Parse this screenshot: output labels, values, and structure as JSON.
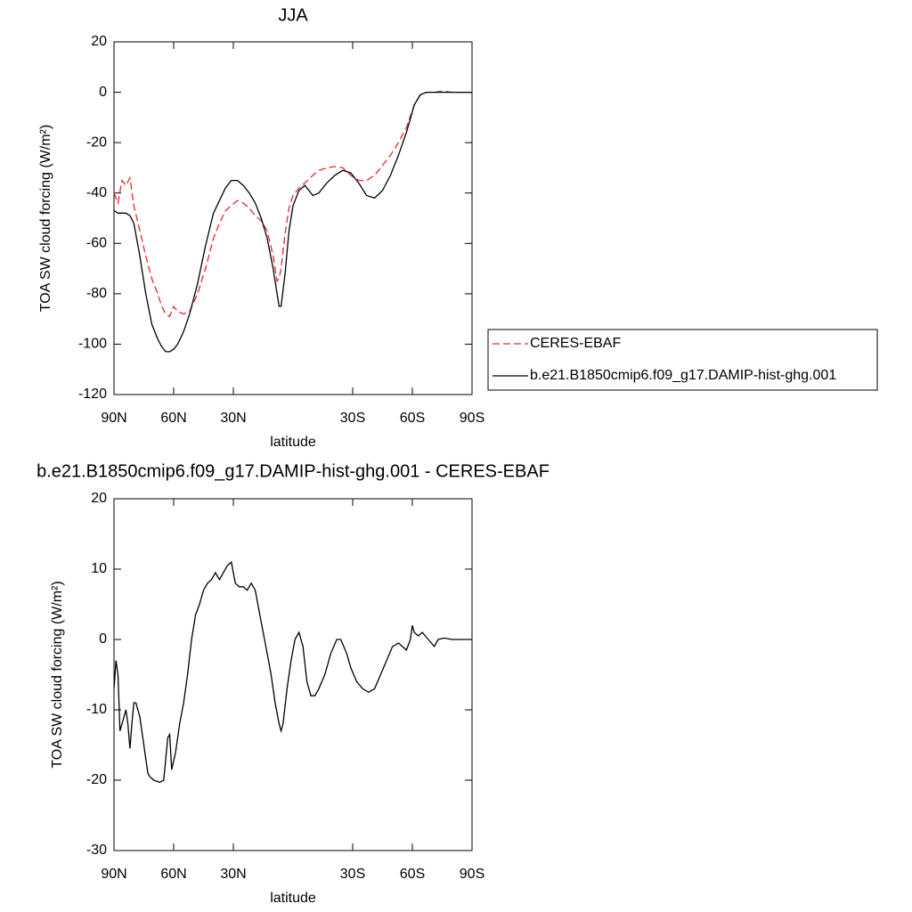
{
  "chart_data": [
    {
      "type": "line",
      "title": "JJA",
      "xlabel": "latitude",
      "ylabel": "TOA SW cloud forcing (W/m²)",
      "x": [
        90,
        88,
        86,
        84,
        82,
        80,
        77,
        74,
        71,
        68,
        66,
        64,
        62,
        60,
        58,
        55,
        52,
        48,
        44,
        40,
        37,
        34,
        31,
        28,
        25,
        22,
        19,
        16,
        13,
        10,
        8,
        7,
        6,
        4,
        2,
        0,
        -3,
        -6,
        -10,
        -13,
        -17,
        -21,
        -25,
        -29,
        -33,
        -37,
        -41,
        -45,
        -49,
        -53,
        -57,
        -61,
        -64,
        -67,
        -71,
        -75,
        -80,
        -85,
        -90
      ],
      "series": [
        {
          "name": "CERES-EBAF",
          "color": "#e8262a",
          "dashed": true,
          "values": [
            -40,
            -44,
            -35,
            -37,
            -34,
            -45,
            -55,
            -65,
            -74,
            -80,
            -85,
            -88,
            -89,
            -85,
            -87,
            -88,
            -87,
            -80,
            -70,
            -58,
            -52,
            -47,
            -45,
            -43,
            -44,
            -46,
            -49,
            -51,
            -55,
            -65,
            -75,
            -74,
            -70,
            -56,
            -46,
            -41,
            -38,
            -36,
            -33,
            -31,
            -30,
            -29.5,
            -30,
            -33,
            -35,
            -35,
            -33,
            -29,
            -25,
            -20,
            -14,
            -5,
            -1,
            0,
            0,
            0.5,
            0,
            0,
            0
          ]
        },
        {
          "name": "b.e21.B1850cmip6.f09_g17.DAMIP-hist-ghg.001",
          "color": "#000000",
          "dashed": false,
          "values": [
            -47,
            -48,
            -48,
            -48,
            -49,
            -52,
            -65,
            -80,
            -92,
            -98,
            -101,
            -103,
            -103,
            -102,
            -100,
            -95,
            -88,
            -76,
            -61,
            -48,
            -43,
            -38,
            -35,
            -35,
            -37,
            -40,
            -44,
            -50,
            -58,
            -70,
            -80,
            -85,
            -85,
            -72,
            -55,
            -45,
            -39,
            -37,
            -41,
            -40,
            -36,
            -33,
            -31,
            -32,
            -36,
            -41,
            -42,
            -39,
            -33,
            -25,
            -16,
            -5,
            -1,
            0,
            0,
            0,
            0,
            0,
            0
          ]
        }
      ],
      "xlim": [
        90,
        -90
      ],
      "ylim": [
        -120,
        20
      ],
      "xticks": [
        {
          "value": 90,
          "label": "90N"
        },
        {
          "value": 60,
          "label": "60N"
        },
        {
          "value": 30,
          "label": "30N"
        },
        {
          "value": -30,
          "label": "30S"
        },
        {
          "value": -60,
          "label": "60S"
        },
        {
          "value": -90,
          "label": "90S"
        }
      ],
      "yticks": [
        -120,
        -100,
        -80,
        -60,
        -40,
        -20,
        0,
        20
      ],
      "legend": "right"
    },
    {
      "type": "line",
      "title": "b.e21.B1850cmip6.f09_g17.DAMIP-hist-ghg.001 - CERES-EBAF",
      "xlabel": "latitude",
      "ylabel": "TOA SW cloud forcing (W/m²)",
      "x": [
        90,
        89,
        88,
        87,
        85,
        84,
        83,
        82,
        81,
        80,
        79,
        77,
        75,
        73,
        72,
        70,
        67,
        65,
        64,
        63,
        62,
        61,
        59,
        57,
        55,
        53,
        51,
        49,
        47,
        45,
        43,
        41,
        39,
        37,
        35,
        33,
        31,
        29,
        27,
        25,
        23,
        21,
        19,
        17,
        15,
        13,
        11,
        9,
        7,
        6,
        5,
        3,
        1,
        -1,
        -3,
        -5,
        -7,
        -9,
        -11,
        -13,
        -16,
        -19,
        -22,
        -24,
        -27,
        -29,
        -32,
        -35,
        -38,
        -41,
        -44,
        -47,
        -50,
        -53,
        -55,
        -57,
        -59,
        -60,
        -61,
        -63,
        -65,
        -68,
        -71,
        -73,
        -76,
        -80,
        -85,
        -90
      ],
      "series": [
        {
          "color": "#000000",
          "dashed": false,
          "values": [
            -7,
            -3,
            -5,
            -13,
            -11,
            -10,
            -12,
            -15.5,
            -12,
            -9,
            -9,
            -11,
            -15,
            -19,
            -19.5,
            -20,
            -20.3,
            -20,
            -17,
            -14,
            -13.5,
            -18.5,
            -16,
            -12,
            -9,
            -5,
            0,
            3.5,
            5,
            7,
            8,
            8.5,
            9.5,
            8.5,
            9.5,
            10.5,
            11,
            8,
            7.5,
            7.5,
            7,
            8,
            7,
            4,
            1,
            -2,
            -5,
            -9,
            -12,
            -13,
            -12,
            -7,
            -3,
            0,
            1,
            -1,
            -6,
            -8,
            -8,
            -7,
            -5,
            -2,
            0,
            0,
            -2,
            -4,
            -6,
            -7,
            -7.5,
            -7,
            -5,
            -3,
            -1,
            -0.5,
            -1,
            -1.5,
            0,
            2,
            1,
            0.5,
            1,
            0,
            -1,
            0,
            0.2,
            0,
            0,
            0
          ]
        }
      ],
      "xlim": [
        90,
        -90
      ],
      "ylim": [
        -30,
        20
      ],
      "xticks": [
        {
          "value": 90,
          "label": "90N"
        },
        {
          "value": 60,
          "label": "60N"
        },
        {
          "value": 30,
          "label": "30N"
        },
        {
          "value": -30,
          "label": "30S"
        },
        {
          "value": -60,
          "label": "60S"
        },
        {
          "value": -90,
          "label": "90S"
        }
      ],
      "yticks": [
        -30,
        -20,
        -10,
        0,
        10,
        20
      ]
    }
  ]
}
